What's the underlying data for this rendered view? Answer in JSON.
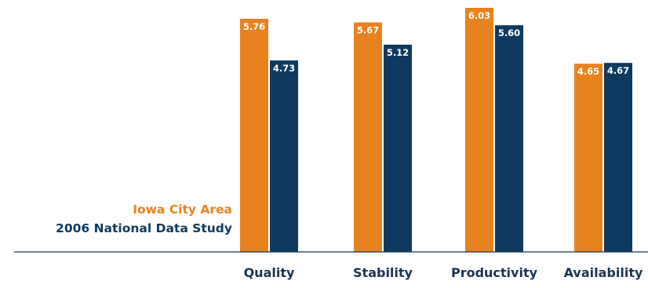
{
  "chart_data": {
    "type": "bar",
    "categories": [
      "Quality",
      "Stability",
      "Productivity",
      "Availability"
    ],
    "series": [
      {
        "name": "Iowa City Area",
        "values": [
          5.76,
          5.67,
          6.03,
          4.65
        ],
        "color": "#e8821e"
      },
      {
        "name": "2006 National Data Study",
        "values": [
          4.73,
          5.12,
          5.6,
          4.67
        ],
        "color": "#0e3a5f"
      }
    ],
    "value_labels": {
      "series_0": [
        "5.76",
        "5.67",
        "6.03",
        "4.65"
      ],
      "series_1": [
        "4.73",
        "5.12",
        "5.60",
        "4.67"
      ]
    },
    "ylim": [
      0,
      6.03
    ],
    "grid": false,
    "legend_position": "left",
    "axis_color": "#1b3553"
  }
}
